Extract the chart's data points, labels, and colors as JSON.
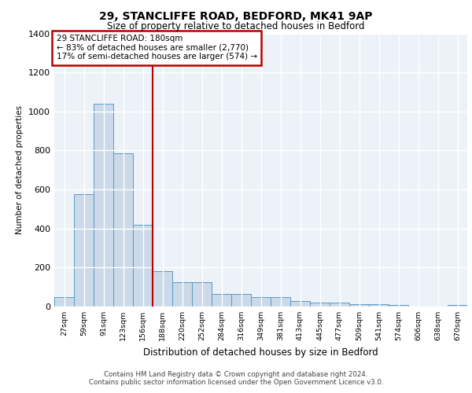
{
  "title_line1": "29, STANCLIFFE ROAD, BEDFORD, MK41 9AP",
  "title_line2": "Size of property relative to detached houses in Bedford",
  "xlabel": "Distribution of detached houses by size in Bedford",
  "ylabel": "Number of detached properties",
  "bar_labels": [
    "27sqm",
    "59sqm",
    "91sqm",
    "123sqm",
    "156sqm",
    "188sqm",
    "220sqm",
    "252sqm",
    "284sqm",
    "316sqm",
    "349sqm",
    "381sqm",
    "413sqm",
    "445sqm",
    "477sqm",
    "509sqm",
    "541sqm",
    "574sqm",
    "606sqm",
    "638sqm",
    "670sqm"
  ],
  "bar_values": [
    47,
    575,
    1040,
    785,
    420,
    180,
    125,
    125,
    65,
    65,
    50,
    50,
    27,
    20,
    20,
    12,
    12,
    10,
    0,
    0,
    10
  ],
  "bar_color": "#ccd9e8",
  "bar_edge_color": "#5a9ac5",
  "background_color": "#edf2f8",
  "grid_color": "#ffffff",
  "vline_x_index": 4,
  "vline_color": "#bb0000",
  "annotation_text": "29 STANCLIFFE ROAD: 180sqm\n← 83% of detached houses are smaller (2,770)\n17% of semi-detached houses are larger (574) →",
  "annotation_box_color": "#ffffff",
  "annotation_edge_color": "#bb0000",
  "ylim": [
    0,
    1400
  ],
  "yticks": [
    0,
    200,
    400,
    600,
    800,
    1000,
    1200,
    1400
  ],
  "footer_line1": "Contains HM Land Registry data © Crown copyright and database right 2024.",
  "footer_line2": "Contains public sector information licensed under the Open Government Licence v3.0."
}
